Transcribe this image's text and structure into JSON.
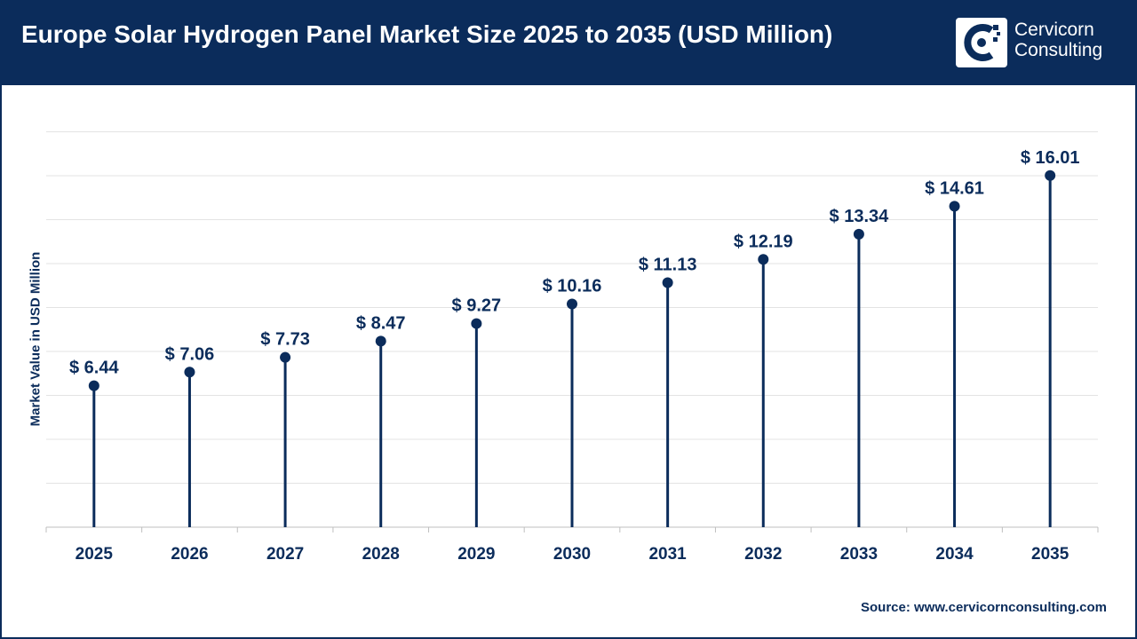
{
  "header": {
    "title": "Europe Solar Hydrogen Panel Market Size 2025 to 2035 (USD Million)",
    "logo_line1": "Cervicorn",
    "logo_line2": "Consulting"
  },
  "source_text": "Source: www.cervicornconsulting.com",
  "colors": {
    "brand": "#0b2c5b",
    "grid": "#e3e3e3",
    "axis": "#bfbfbf"
  },
  "chart_data": {
    "type": "scatter",
    "style": "lollipop",
    "title": "Europe Solar Hydrogen Panel Market Size 2025 to 2035 (USD Million)",
    "xlabel": "",
    "ylabel": "Market Value in USD Million",
    "categories": [
      "2025",
      "2026",
      "2027",
      "2028",
      "2029",
      "2030",
      "2031",
      "2032",
      "2033",
      "2034",
      "2035"
    ],
    "values": [
      6.44,
      7.06,
      7.73,
      8.47,
      9.27,
      10.16,
      11.13,
      12.19,
      13.34,
      14.61,
      16.01
    ],
    "data_labels": [
      "$ 6.44",
      "$ 7.06",
      "$ 7.73",
      "$ 8.47",
      "$ 9.27",
      "$ 10.16",
      "$ 11.13",
      "$ 12.19",
      "$ 13.34",
      "$ 14.61",
      "$ 16.01"
    ],
    "ylim": [
      0,
      18
    ],
    "grid": true,
    "legend": "none"
  }
}
